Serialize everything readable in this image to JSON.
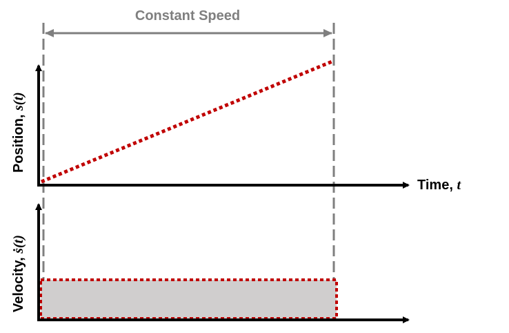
{
  "annotation": {
    "constant_speed_label": "Constant Speed"
  },
  "axes": {
    "time_label": "Time, ",
    "time_symbol": "t",
    "position_label": "Position, ",
    "position_symbol": "s(t)",
    "velocity_label": "Velocity, ",
    "velocity_symbol": "ṡ(t)"
  },
  "colors": {
    "axis": "#000000",
    "guide": "#7f7f7f",
    "curve": "#c00000",
    "fill": "#d0cece"
  }
}
